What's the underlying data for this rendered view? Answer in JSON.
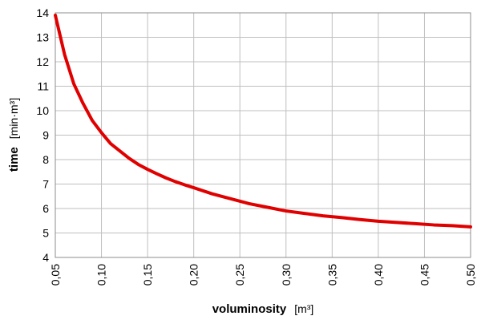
{
  "chart_data": {
    "type": "line",
    "title": "",
    "xlabel": "voluminosity",
    "xunit": "[m³]",
    "ylabel": "time",
    "yunit": "[min·m³]",
    "xlim": [
      0.05,
      0.5
    ],
    "ylim": [
      4,
      14
    ],
    "y_ticks": [
      "4",
      "5",
      "6",
      "7",
      "8",
      "9",
      "10",
      "11",
      "12",
      "13",
      "14"
    ],
    "x_ticks": [
      "0,05",
      "0,10",
      "0,15",
      "0,20",
      "0,25",
      "0,30",
      "0,35",
      "0,40",
      "0,45",
      "0,50"
    ],
    "grid": true,
    "legend": "none",
    "series": [
      {
        "color": "#e00000",
        "x": [
          0.05,
          0.06,
          0.07,
          0.08,
          0.09,
          0.1,
          0.11,
          0.12,
          0.13,
          0.14,
          0.15,
          0.16,
          0.17,
          0.18,
          0.19,
          0.2,
          0.22,
          0.24,
          0.26,
          0.28,
          0.3,
          0.32,
          0.34,
          0.36,
          0.38,
          0.4,
          0.42,
          0.44,
          0.46,
          0.48,
          0.5
        ],
        "y": [
          13.9,
          12.3,
          11.1,
          10.3,
          9.6,
          9.1,
          8.65,
          8.35,
          8.05,
          7.8,
          7.6,
          7.42,
          7.25,
          7.1,
          6.97,
          6.85,
          6.6,
          6.4,
          6.2,
          6.05,
          5.9,
          5.8,
          5.7,
          5.63,
          5.55,
          5.48,
          5.43,
          5.38,
          5.33,
          5.3,
          5.25
        ]
      }
    ]
  }
}
